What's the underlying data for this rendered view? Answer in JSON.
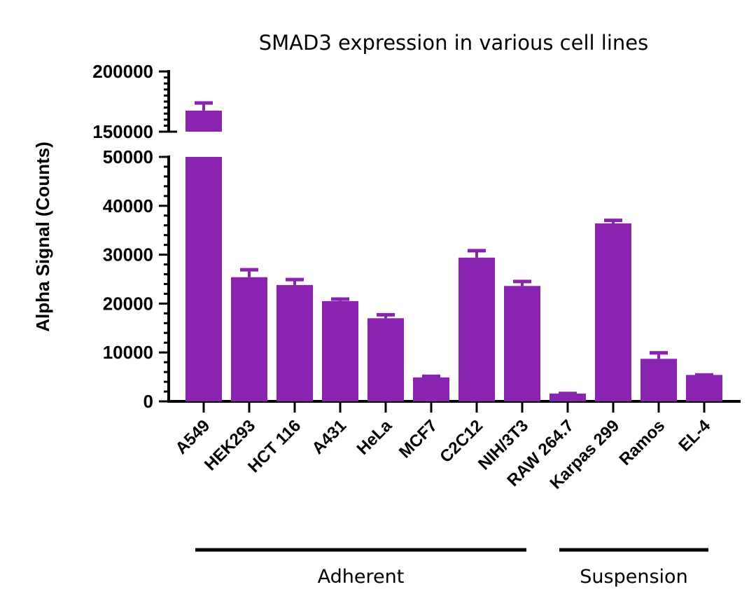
{
  "chart_data": {
    "type": "bar",
    "title": "SMAD3 expression in various cell lines",
    "xlabel": "",
    "ylabel": "Alpha Signal (Counts)",
    "bar_color": "#8824b0",
    "axis_break": true,
    "ylim_lower": [
      0,
      50000
    ],
    "ylim_upper": [
      150000,
      200000
    ],
    "yticks_lower": [
      0,
      10000,
      20000,
      30000,
      40000,
      50000
    ],
    "yticks_upper": [
      150000,
      200000
    ],
    "ytick_labels_lower": [
      "0",
      "10000",
      "20000",
      "30000",
      "40000",
      "50000"
    ],
    "ytick_labels_upper": [
      "150000",
      "200000"
    ],
    "grid": false,
    "categories": [
      "A549",
      "HEK293",
      "HCT 116",
      "A431",
      "HeLa",
      "MCF7",
      "C2C12",
      "NIH/3T3",
      "RAW 264.7",
      "Karpas 299",
      "Ramos",
      "EL-4"
    ],
    "values": [
      167500,
      25400,
      23800,
      20500,
      17000,
      4900,
      29400,
      23600,
      1600,
      36400,
      8700,
      5400
    ],
    "error_upper": [
      175000,
      27200,
      25200,
      21200,
      18000,
      5400,
      31100,
      24800,
      1900,
      37300,
      10200,
      5700
    ],
    "groups": [
      {
        "label": "Adherent",
        "from": 0,
        "to": 7
      },
      {
        "label": "Suspension",
        "from": 8,
        "to": 11
      }
    ]
  }
}
